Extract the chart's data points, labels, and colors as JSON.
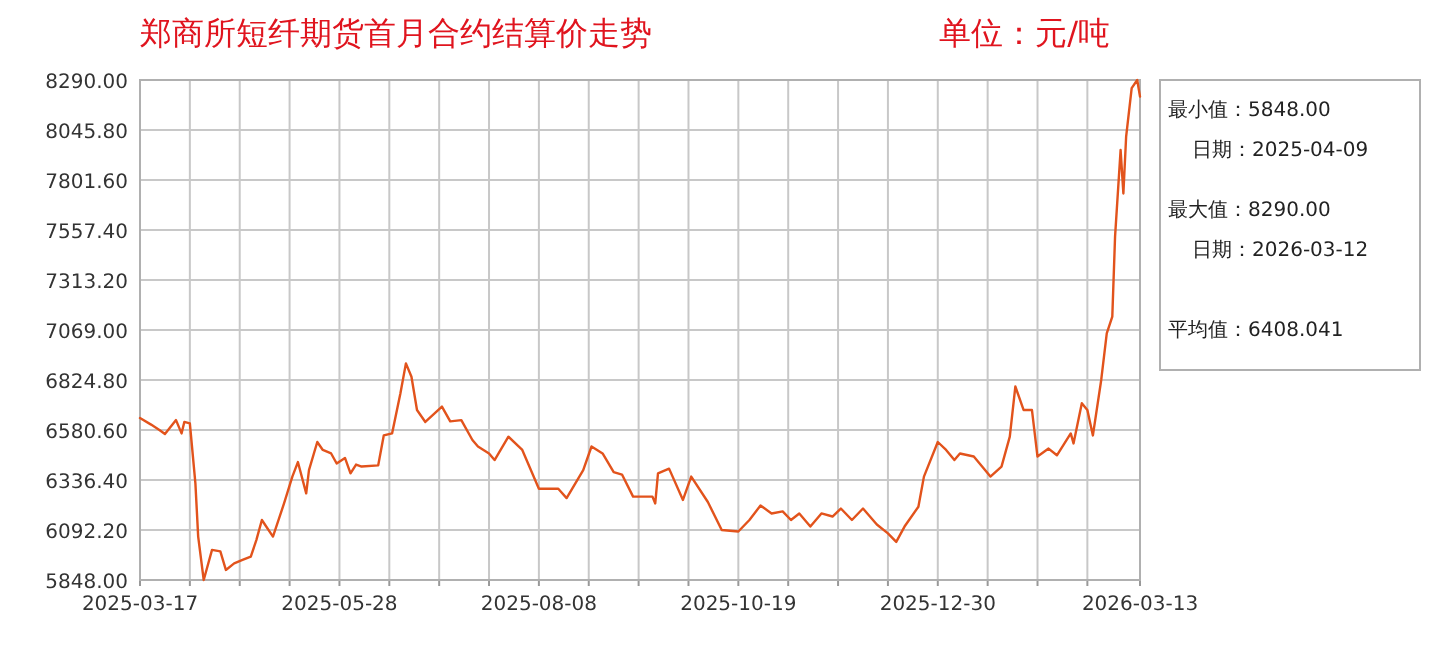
{
  "chart_data": {
    "type": "line",
    "title": "郑商所短纤期货首月合约结算价走势",
    "subtitle": "单位：元/吨",
    "annotations": [
      "最小值：5848.00",
      "日期：2025-04-09",
      "最大值：8290.00",
      "日期：2026-03-12",
      "平均值：6408.041"
    ],
    "x": [
      "2025-03-17",
      "2025-03-21",
      "2025-03-24",
      "2025-03-26",
      "2025-03-30",
      "2025-04-01",
      "2025-04-02",
      "2025-04-04",
      "2025-04-06",
      "2025-04-07",
      "2025-04-09",
      "2025-04-12",
      "2025-04-15",
      "2025-04-17",
      "2025-04-20",
      "2025-04-23",
      "2025-04-26",
      "2025-04-28",
      "2025-04-30",
      "2025-05-04",
      "2025-05-08",
      "2025-05-11",
      "2025-05-13",
      "2025-05-16",
      "2025-05-17",
      "2025-05-20",
      "2025-05-22",
      "2025-05-25",
      "2025-05-27",
      "2025-05-30",
      "2025-06-01",
      "2025-06-03",
      "2025-06-05",
      "2025-06-11",
      "2025-06-13",
      "2025-06-16",
      "2025-06-19",
      "2025-06-21",
      "2025-06-23",
      "2025-06-25",
      "2025-06-28",
      "2025-07-04",
      "2025-07-07",
      "2025-07-11",
      "2025-07-15",
      "2025-07-17",
      "2025-07-21",
      "2025-07-23",
      "2025-07-28",
      "2025-08-02",
      "2025-08-08",
      "2025-08-15",
      "2025-08-18",
      "2025-08-24",
      "2025-08-27",
      "2025-08-31",
      "2025-09-04",
      "2025-09-07",
      "2025-09-11",
      "2025-09-18",
      "2025-09-19",
      "2025-09-20",
      "2025-09-24",
      "2025-09-29",
      "2025-10-02",
      "2025-10-08",
      "2025-10-13",
      "2025-10-19",
      "2025-10-23",
      "2025-10-27",
      "2025-10-31",
      "2025-11-04",
      "2025-11-07",
      "2025-11-10",
      "2025-11-14",
      "2025-11-18",
      "2025-11-22",
      "2025-11-25",
      "2025-11-29",
      "2025-12-03",
      "2025-12-08",
      "2025-12-12",
      "2025-12-15",
      "2025-12-18",
      "2025-12-23",
      "2025-12-25",
      "2025-12-30",
      "2026-01-02",
      "2026-01-05",
      "2026-01-07",
      "2026-01-12",
      "2026-01-18",
      "2026-01-22",
      "2026-01-25",
      "2026-01-27",
      "2026-01-30",
      "2026-02-02",
      "2026-02-04",
      "2026-02-08",
      "2026-02-11",
      "2026-02-16",
      "2026-02-17",
      "2026-02-20",
      "2026-02-22",
      "2026-02-24",
      "2026-02-27",
      "2026-03-01",
      "2026-03-03",
      "2026-03-04",
      "2026-03-06",
      "2026-03-07",
      "2026-03-08",
      "2026-03-10",
      "2026-03-12",
      "2026-03-13"
    ],
    "series": [
      {
        "color": "#e2531c",
        "values": [
          6639,
          6607,
          6581,
          6561,
          6629,
          6564,
          6620,
          6613,
          6320,
          6060,
          5848,
          5995,
          5988,
          5897,
          5929,
          5946,
          5962,
          6043,
          6141,
          6060,
          6222,
          6353,
          6424,
          6271,
          6385,
          6522,
          6483,
          6466,
          6417,
          6444,
          6369,
          6412,
          6402,
          6408,
          6554,
          6564,
          6759,
          6906,
          6841,
          6678,
          6620,
          6695,
          6623,
          6629,
          6532,
          6500,
          6466,
          6434,
          6548,
          6483,
          6294,
          6294,
          6248,
          6385,
          6500,
          6466,
          6375,
          6363,
          6255,
          6255,
          6222,
          6369,
          6392,
          6239,
          6353,
          6229,
          6092,
          6085,
          6141,
          6212,
          6173,
          6183,
          6141,
          6173,
          6109,
          6173,
          6158,
          6197,
          6141,
          6197,
          6119,
          6076,
          6034,
          6109,
          6206,
          6353,
          6522,
          6483,
          6434,
          6466,
          6451,
          6353,
          6402,
          6548,
          6793,
          6678,
          6678,
          6451,
          6490,
          6457,
          6564,
          6515,
          6711,
          6678,
          6554,
          6825,
          7052,
          7134,
          7525,
          7948,
          7736,
          8014,
          8250,
          8290,
          8209
        ]
      }
    ],
    "xlim": [
      "2025-03-17",
      "2026-03-13"
    ],
    "xticks": [
      {
        "value": "2025-03-17",
        "label": "2025-03-17"
      },
      {
        "value": "2025-04-04",
        "label": null
      },
      {
        "value": "2025-04-22",
        "label": null
      },
      {
        "value": "2025-05-10",
        "label": null
      },
      {
        "value": "2025-05-28",
        "label": "2025-05-28"
      },
      {
        "value": "2025-06-15",
        "label": null
      },
      {
        "value": "2025-07-03",
        "label": null
      },
      {
        "value": "2025-07-21",
        "label": null
      },
      {
        "value": "2025-08-08",
        "label": "2025-08-08"
      },
      {
        "value": "2025-08-26",
        "label": null
      },
      {
        "value": "2025-09-13",
        "label": null
      },
      {
        "value": "2025-10-01",
        "label": null
      },
      {
        "value": "2025-10-19",
        "label": "2025-10-19"
      },
      {
        "value": "2025-11-06",
        "label": null
      },
      {
        "value": "2025-11-24",
        "label": null
      },
      {
        "value": "2025-12-12",
        "label": null
      },
      {
        "value": "2025-12-30",
        "label": "2025-12-30"
      },
      {
        "value": "2026-01-17",
        "label": null
      },
      {
        "value": "2026-02-04",
        "label": null
      },
      {
        "value": "2026-02-22",
        "label": null
      },
      {
        "value": "2026-03-13",
        "label": "2026-03-13"
      }
    ],
    "ylim": [
      5848,
      8290
    ],
    "yticks": [
      {
        "value": 5848,
        "label": "5848.00"
      },
      {
        "value": 6092.2,
        "label": "6092.20"
      },
      {
        "value": 6336.4,
        "label": "6336.40"
      },
      {
        "value": 6580.6,
        "label": "6580.60"
      },
      {
        "value": 6824.8,
        "label": "6824.80"
      },
      {
        "value": 7069,
        "label": "7069.00"
      },
      {
        "value": 7313.2,
        "label": "7313.20"
      },
      {
        "value": 7557.4,
        "label": "7557.40"
      },
      {
        "value": 7801.6,
        "label": "7801.60"
      },
      {
        "value": 8045.8,
        "label": "8045.80"
      },
      {
        "value": 8290,
        "label": "8290.00"
      }
    ],
    "grid": true,
    "marker": "none",
    "line_style": "solid"
  }
}
